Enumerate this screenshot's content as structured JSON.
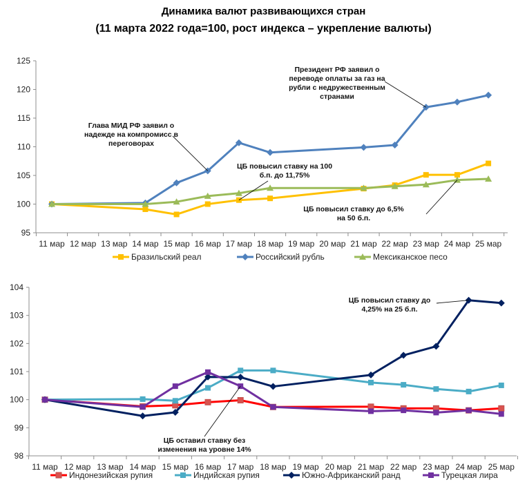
{
  "title_line1": "Динамика валют развивающихся стран",
  "title_line2": "(11 марта 2022 года=100, рост индекса – укрепление валюты)",
  "chart_data": [
    {
      "type": "line",
      "categories": [
        "11 мар",
        "12 мар",
        "13 мар",
        "14 мар",
        "15 мар",
        "16 мар",
        "17 мар",
        "18 мар",
        "19 мар",
        "20 мар",
        "21 мар",
        "22 мар",
        "23 мар",
        "24 мар",
        "25 мар"
      ],
      "ylim": [
        95,
        125
      ],
      "yticks": [
        "95",
        "100",
        "105",
        "110",
        "115",
        "120",
        "125"
      ],
      "grid": false,
      "legend": "bottom",
      "series": [
        {
          "name": "Бразильский реал",
          "color": "#FFC000",
          "marker": "square",
          "values": [
            100,
            null,
            null,
            99.1,
            98.2,
            100.0,
            100.7,
            101.0,
            null,
            null,
            102.7,
            103.3,
            105.1,
            105.1,
            107.1
          ]
        },
        {
          "name": "Российский рубль",
          "color": "#4F81BD",
          "marker": "diamond",
          "values": [
            100,
            null,
            null,
            100.2,
            103.7,
            105.8,
            110.7,
            109.0,
            null,
            null,
            109.9,
            110.3,
            116.9,
            117.8,
            119.0
          ]
        },
        {
          "name": "Мексиканское песо",
          "color": "#9BBB59",
          "marker": "triangle",
          "values": [
            100,
            null,
            null,
            100.0,
            100.4,
            101.4,
            101.9,
            102.8,
            null,
            null,
            102.8,
            103.1,
            103.4,
            104.2,
            104.4
          ]
        }
      ],
      "annotations": [
        {
          "lines": [
            "Глава МИД РФ заявил о",
            "надежде на компромисс в",
            "переговорах"
          ],
          "series": "Российский рубль",
          "category": "16 мар"
        },
        {
          "lines": [
            "Президент РФ заявил о",
            "переводе оплаты за газ на",
            "рубли с недружественным",
            "странами"
          ],
          "series": "Российский рубль",
          "category": "23 мар"
        },
        {
          "lines": [
            "ЦБ повысил ставку на 100",
            "б.п.  до 11,75%"
          ],
          "series": "Бразильский реал",
          "category": "17 мар"
        },
        {
          "lines": [
            "ЦБ повысил ставку до 6,5%",
            "на 50 б.п."
          ],
          "series": "Мексиканское песо",
          "category": "24 мар"
        }
      ]
    },
    {
      "type": "line",
      "categories": [
        "11 мар",
        "12 мар",
        "13 мар",
        "14 мар",
        "15 мар",
        "16 мар",
        "17 мар",
        "18 мар",
        "19 мар",
        "20 мар",
        "21 мар",
        "22 мар",
        "23 мар",
        "24 мар",
        "25 мар"
      ],
      "ylim": [
        98,
        104
      ],
      "yticks": [
        "98",
        "99",
        "100",
        "101",
        "102",
        "103",
        "104"
      ],
      "grid": false,
      "legend": "bottom",
      "series": [
        {
          "name": "Индонезийская рупия",
          "color": "#FF0000",
          "marker": "square-outline",
          "values": [
            100,
            null,
            null,
            99.76,
            99.8,
            99.91,
            99.98,
            99.74,
            null,
            null,
            99.75,
            99.69,
            99.69,
            99.62,
            99.69
          ]
        },
        {
          "name": "Индийская рупия",
          "color": "#4BACC6",
          "marker": "square",
          "values": [
            100,
            null,
            null,
            100.02,
            99.96,
            100.42,
            101.04,
            101.04,
            null,
            null,
            100.61,
            100.53,
            100.38,
            100.29,
            100.51
          ]
        },
        {
          "name": "Южно-Африканский ранд",
          "color": "#002060",
          "marker": "diamond",
          "values": [
            100,
            null,
            null,
            99.42,
            99.55,
            100.81,
            100.8,
            100.47,
            null,
            null,
            100.88,
            101.58,
            101.9,
            103.54,
            103.44
          ]
        },
        {
          "name": "Турецкая лира",
          "color": "#7030A0",
          "marker": "square",
          "values": [
            100,
            null,
            null,
            99.74,
            100.48,
            100.98,
            100.48,
            99.74,
            null,
            null,
            99.59,
            99.62,
            99.54,
            99.62,
            99.49
          ]
        }
      ],
      "annotations": [
        {
          "lines": [
            "ЦБ повысил ставку до",
            "4,25% на 25 б.п."
          ],
          "series": "Южно-Африканский ранд",
          "category": "24 мар"
        },
        {
          "lines": [
            "ЦБ оставил ставку без",
            "изменения на уровне 14%"
          ],
          "series": "Турецкая лира",
          "category": "17 мар"
        }
      ]
    }
  ]
}
